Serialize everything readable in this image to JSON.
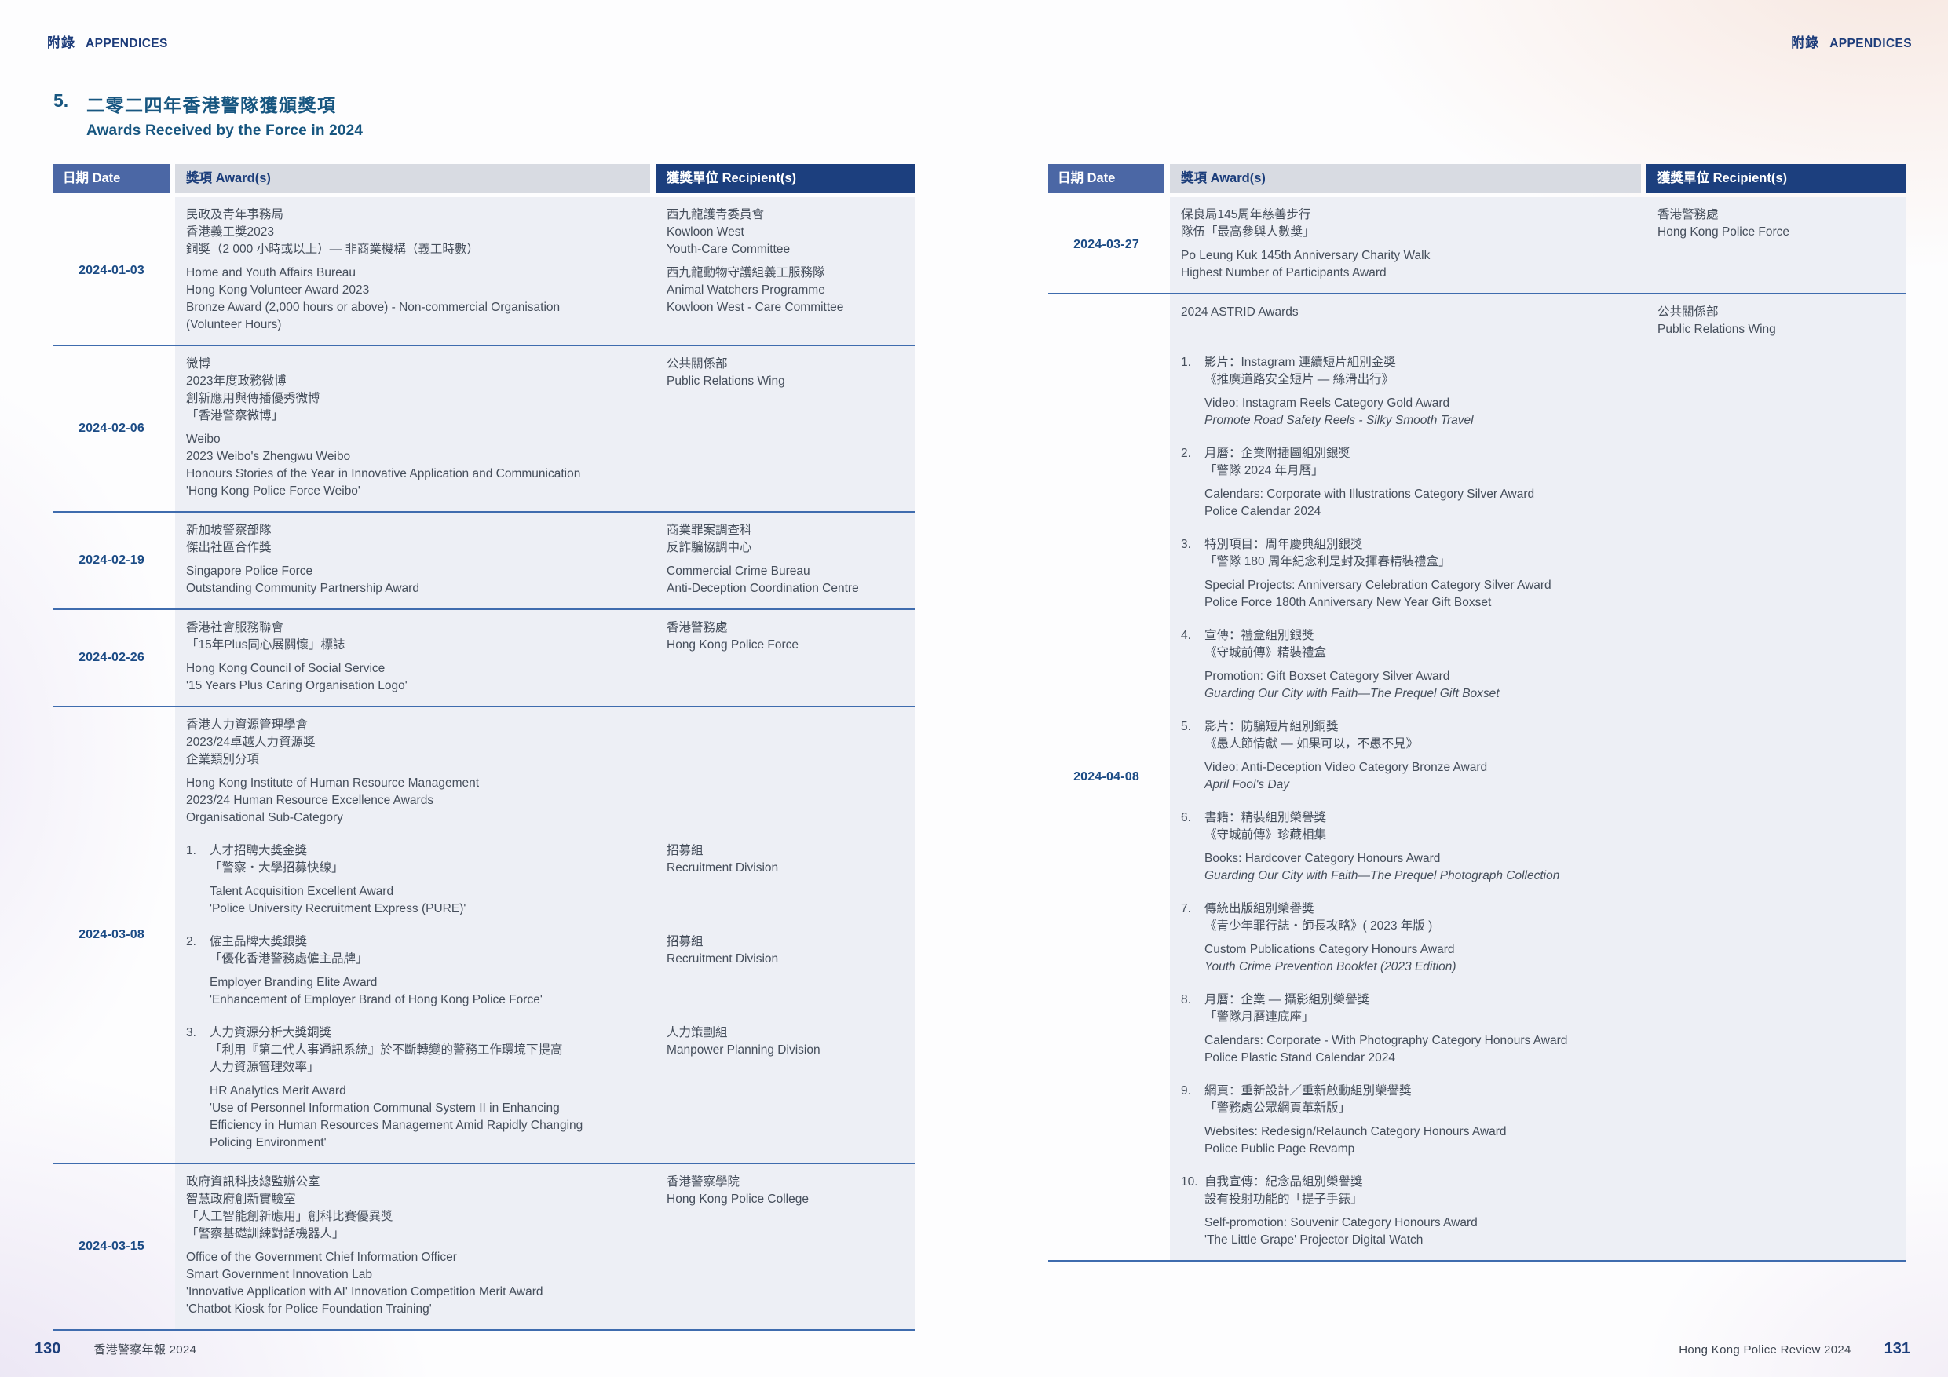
{
  "page_header": {
    "left": {
      "cn": "附錄",
      "en": "APPENDICES"
    },
    "right": {
      "cn": "附錄",
      "en": "APPENDICES"
    }
  },
  "section": {
    "number": "5.",
    "title_cn": "二零二四年香港警隊獲頒獎項",
    "title_en": "Awards Received by the Force in 2024"
  },
  "columns": {
    "date": "日期 Date",
    "award": "獎項 Award(s)",
    "recipient": "獲獎單位 Recipient(s)"
  },
  "colors": {
    "navy": "#1c3e7b",
    "title_blue": "#175680",
    "date_header_bg": "#4b67a5",
    "award_header_bg": "#d8dbe2",
    "recipient_header_bg": "#1c3f7e",
    "row_tint": "#edeff5",
    "separator": "#3f6cae",
    "body_text": "#454e5b",
    "date_text": "#1b4b85"
  },
  "footer": {
    "left_page": "130",
    "left_text": "香港警察年報 2024",
    "right_text": "Hong Kong Police Review 2024",
    "right_page": "131"
  },
  "tables": [
    {
      "side": "left",
      "rows": [
        {
          "date": "2024-01-03",
          "segments": [
            {
              "award": [
                [
                  "民政及青年事務局",
                  "香港義工獎2023",
                  "銅獎（2 000 小時或以上）— 非商業機構（義工時數）"
                ],
                [
                  "Home and Youth Affairs Bureau",
                  "Hong Kong Volunteer Award 2023",
                  "Bronze Award (2,000 hours or above) - Non-commercial Organisation",
                  "(Volunteer Hours)"
                ]
              ],
              "recipient": [
                [
                  "西九龍護青委員會",
                  "Kowloon West",
                  "Youth-Care Committee"
                ],
                [
                  "西九龍動物守護組義工服務隊",
                  "Animal Watchers Programme",
                  "Kowloon West - Care Committee"
                ]
              ]
            }
          ]
        },
        {
          "date": "2024-02-06",
          "segments": [
            {
              "award": [
                [
                  "微博",
                  "2023年度政務微博",
                  "創新應用與傳播優秀微博",
                  "「香港警察微博」"
                ],
                [
                  "Weibo",
                  "2023 Weibo's Zhengwu Weibo",
                  "Honours Stories of the Year in Innovative Application and Communication",
                  "'Hong Kong Police Force Weibo'"
                ]
              ],
              "recipient": [
                [
                  "公共關係部",
                  "Public Relations Wing"
                ]
              ]
            }
          ]
        },
        {
          "date": "2024-02-19",
          "segments": [
            {
              "award": [
                [
                  "新加坡警察部隊",
                  "傑出社區合作獎"
                ],
                [
                  "Singapore Police Force",
                  "Outstanding Community Partnership Award"
                ]
              ],
              "recipient": [
                [
                  "商業罪案調查科",
                  "反詐騙協調中心"
                ],
                [
                  "Commercial Crime Bureau",
                  "Anti-Deception Coordination Centre"
                ]
              ]
            }
          ]
        },
        {
          "date": "2024-02-26",
          "segments": [
            {
              "award": [
                [
                  "香港社會服務聯會",
                  "「15年Plus同心展關懷」標誌"
                ],
                [
                  "Hong Kong Council of Social Service",
                  "'15 Years Plus Caring Organisation Logo'"
                ]
              ],
              "recipient": [
                [
                  "香港警務處",
                  "Hong Kong Police Force"
                ]
              ]
            }
          ]
        },
        {
          "date": "2024-03-08",
          "segments": [
            {
              "award": [
                [
                  "香港人力資源管理學會",
                  "2023/24卓越人力資源獎",
                  "企業類別分項"
                ],
                [
                  "Hong Kong Institute of Human Resource Management",
                  "2023/24 Human Resource Excellence Awards",
                  "Organisational Sub-Category"
                ]
              ],
              "recipient": []
            },
            {
              "num": "1.",
              "award": [
                [
                  "人才招聘大獎金獎",
                  "「警察・大學招募快線」"
                ],
                [
                  "Talent Acquisition Excellent Award",
                  "'Police University Recruitment Express (PURE)'"
                ]
              ],
              "recipient": [
                [
                  "招募組",
                  "Recruitment Division"
                ]
              ]
            },
            {
              "num": "2.",
              "award": [
                [
                  "僱主品牌大獎銀獎",
                  "「優化香港警務處僱主品牌」"
                ],
                [
                  "Employer Branding Elite Award",
                  "'Enhancement of Employer Brand of Hong Kong Police Force'"
                ]
              ],
              "recipient": [
                [
                  "招募組",
                  "Recruitment Division"
                ]
              ]
            },
            {
              "num": "3.",
              "award": [
                [
                  "人力資源分析大獎銅獎",
                  "「利用『第二代人事通訊系統』於不斷轉變的警務工作環境下提高",
                  "人力資源管理效率」"
                ],
                [
                  "HR Analytics Merit Award",
                  "'Use of Personnel Information Communal System II in Enhancing",
                  "Efficiency in Human Resources Management Amid Rapidly Changing",
                  "Policing Environment'"
                ]
              ],
              "recipient": [
                [
                  "人力策劃組",
                  "Manpower Planning Division"
                ]
              ]
            }
          ]
        },
        {
          "date": "2024-03-15",
          "segments": [
            {
              "award": [
                [
                  "政府資訊科技總監辦公室",
                  "智慧政府創新實驗室",
                  "「人工智能創新應用」創科比賽優異獎",
                  "「警察基礎訓練對話機器人」"
                ],
                [
                  "Office of the Government Chief Information Officer",
                  "Smart Government Innovation Lab",
                  "'Innovative Application with AI' Innovation Competition Merit Award",
                  "'Chatbot Kiosk for Police Foundation Training'"
                ]
              ],
              "recipient": [
                [
                  "香港警察學院",
                  "Hong Kong Police College"
                ]
              ]
            }
          ]
        }
      ]
    },
    {
      "side": "right",
      "rows": [
        {
          "date": "2024-03-27",
          "segments": [
            {
              "award": [
                [
                  "保良局145周年慈善步行",
                  "隊伍「最高參與人數獎」"
                ],
                [
                  "Po Leung Kuk 145th Anniversary Charity Walk",
                  "Highest Number of Participants Award"
                ]
              ],
              "recipient": [
                [
                  "香港警務處",
                  "Hong Kong Police Force"
                ]
              ]
            }
          ]
        },
        {
          "date": "2024-04-08",
          "segments": [
            {
              "award": [
                [
                  "2024 ASTRID Awards"
                ]
              ],
              "recipient": [
                [
                  "公共關係部",
                  "Public Relations Wing"
                ]
              ]
            },
            {
              "num": "1.",
              "award": [
                [
                  "影片：Instagram 連續短片組別金獎",
                  "《推廣道路安全短片 — 絲滑出行》"
                ],
                [
                  "Video: Instagram Reels Category Gold Award",
                  {
                    "t": "Promote Road Safety Reels - Silky Smooth Travel",
                    "i": true
                  }
                ]
              ],
              "recipient": []
            },
            {
              "num": "2.",
              "award": [
                [
                  "月曆：企業附插圖組別銀獎",
                  "「警隊 2024 年月曆」"
                ],
                [
                  "Calendars: Corporate with Illustrations Category Silver Award",
                  "Police Calendar 2024"
                ]
              ],
              "recipient": []
            },
            {
              "num": "3.",
              "award": [
                [
                  "特別項目：周年慶典組別銀獎",
                  "「警隊 180 周年紀念利是封及揮春精裝禮盒」"
                ],
                [
                  "Special Projects: Anniversary Celebration Category Silver Award",
                  "Police Force 180th Anniversary New Year Gift Boxset"
                ]
              ],
              "recipient": []
            },
            {
              "num": "4.",
              "award": [
                [
                  "宣傳：禮盒組別銀獎",
                  "《守城前傳》精裝禮盒"
                ],
                [
                  "Promotion: Gift Boxset Category Silver Award",
                  {
                    "t": "Guarding Our City with Faith—The Prequel Gift Boxset",
                    "i": true
                  }
                ]
              ],
              "recipient": []
            },
            {
              "num": "5.",
              "award": [
                [
                  "影片：防騙短片組別銅獎",
                  "《愚人節情獻 — 如果可以，不愚不見》"
                ],
                [
                  "Video: Anti-Deception Video Category Bronze Award",
                  {
                    "t": "April Fool's Day",
                    "i": true
                  }
                ]
              ],
              "recipient": []
            },
            {
              "num": "6.",
              "award": [
                [
                  "書籍：精裝組別榮譽獎",
                  "《守城前傳》珍藏相集"
                ],
                [
                  "Books: Hardcover Category Honours Award",
                  {
                    "t": "Guarding Our City with Faith—The Prequel Photograph Collection",
                    "i": true
                  }
                ]
              ],
              "recipient": []
            },
            {
              "num": "7.",
              "award": [
                [
                  "傳統出版組別榮譽獎",
                  "《青少年罪行誌・師長攻略》( 2023 年版 )"
                ],
                [
                  "Custom Publications Category Honours Award",
                  {
                    "t": "Youth Crime Prevention Booklet (2023 Edition)",
                    "i": true
                  }
                ]
              ],
              "recipient": []
            },
            {
              "num": "8.",
              "award": [
                [
                  "月曆：企業 — 攝影組別榮譽獎",
                  "「警隊月曆連底座」"
                ],
                [
                  "Calendars: Corporate - With Photography Category Honours Award",
                  "Police Plastic Stand Calendar 2024"
                ]
              ],
              "recipient": []
            },
            {
              "num": "9.",
              "award": [
                [
                  "網頁：重新設計／重新啟動組別榮譽獎",
                  "「警務處公眾網頁革新版」"
                ],
                [
                  "Websites: Redesign/Relaunch Category Honours Award",
                  "Police Public Page Revamp"
                ]
              ],
              "recipient": []
            },
            {
              "num": "10.",
              "award": [
                [
                  "自我宣傳：紀念品組別榮譽獎",
                  "設有投射功能的「提子手錶」"
                ],
                [
                  "Self-promotion: Souvenir Category Honours Award",
                  "'The Little Grape' Projector Digital Watch"
                ]
              ],
              "recipient": []
            }
          ]
        }
      ]
    }
  ]
}
